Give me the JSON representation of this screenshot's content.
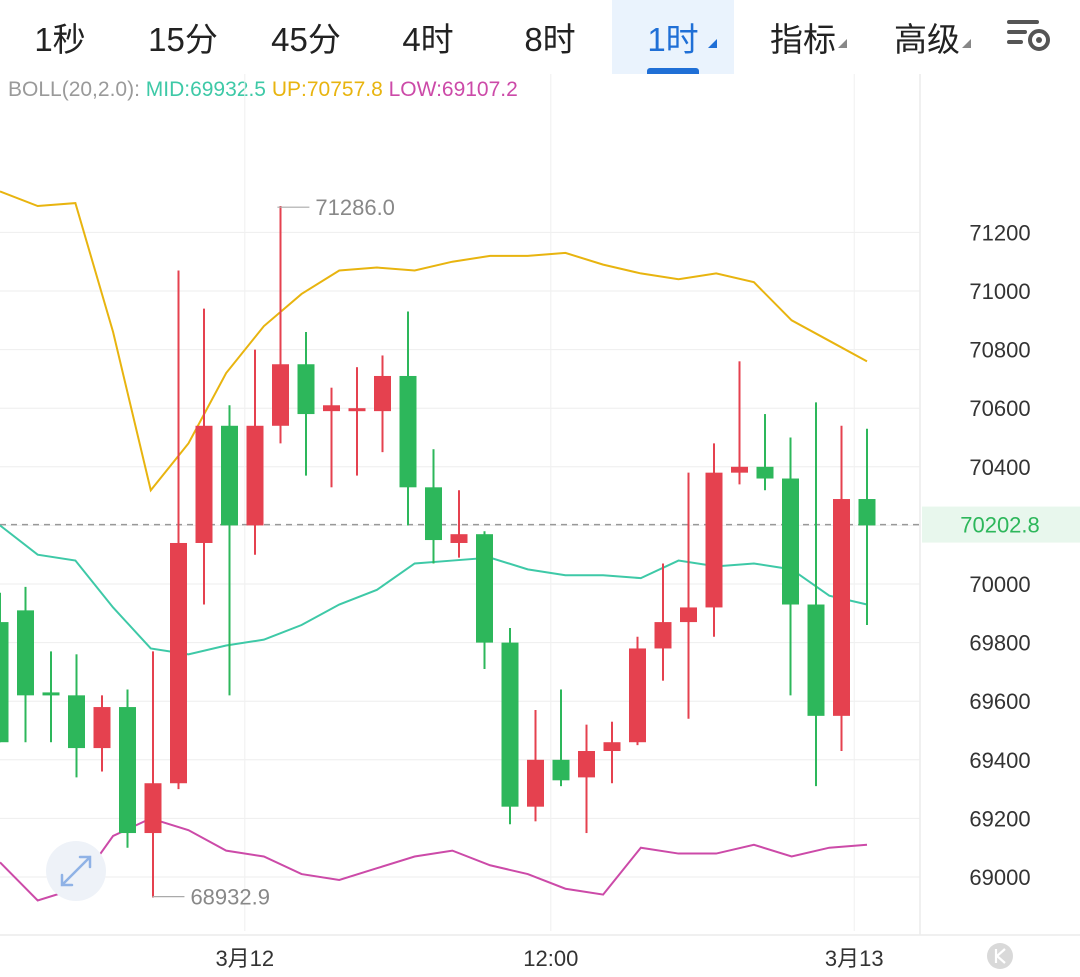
{
  "tabs": [
    {
      "label": "1秒",
      "active": false,
      "dropdown": false
    },
    {
      "label": "15分",
      "active": false,
      "dropdown": false
    },
    {
      "label": "45分",
      "active": false,
      "dropdown": false
    },
    {
      "label": "4时",
      "active": false,
      "dropdown": false
    },
    {
      "label": "8时",
      "active": false,
      "dropdown": false
    },
    {
      "label": "1时",
      "active": true,
      "dropdown": true
    },
    {
      "label": "指标",
      "active": false,
      "dropdown": true
    },
    {
      "label": "高级",
      "active": false,
      "dropdown": true
    }
  ],
  "legend": {
    "name": "BOLL(20,2.0):",
    "mid": "MID:69932.5",
    "up": "UP:70757.8",
    "low": "LOW:69107.2"
  },
  "colors": {
    "up": "#e5414f",
    "down": "#2db75b",
    "mid": "#3ec9a7",
    "upper": "#e8b40f",
    "lower": "#cc4aa8",
    "active_tab": "#1f6fd6",
    "legend_name": "#9a9a9a"
  },
  "chart_data": {
    "type": "candlestick",
    "ylim": [
      68820,
      71780
    ],
    "y_ticks": [
      69000,
      69200,
      69400,
      69600,
      69800,
      70000,
      70200,
      70400,
      70600,
      70800,
      71000,
      71200
    ],
    "y_tick_labels": [
      "69000",
      "69200",
      "69400",
      "69600",
      "69800",
      "70000",
      "70200",
      "70400",
      "70600",
      "70800",
      "71000",
      "71200"
    ],
    "x_labels": [
      {
        "index": 9.6,
        "label": "3月12"
      },
      {
        "index": 21.6,
        "label": "12:00"
      },
      {
        "index": 33.5,
        "label": "3月13"
      }
    ],
    "last_price": 70202.8,
    "last_price_label": "70202.8",
    "high_label": {
      "index": 10.8,
      "value": 71286.0,
      "label": "71286.0"
    },
    "low_label": {
      "index": 5.9,
      "value": 68932.9,
      "label": "68932.9"
    },
    "candles": [
      {
        "o": 69870,
        "h": 69970,
        "l": 69460,
        "c": 69460
      },
      {
        "o": 69910,
        "h": 69990,
        "l": 69460,
        "c": 69620
      },
      {
        "o": 69630,
        "h": 69770,
        "l": 69460,
        "c": 69620
      },
      {
        "o": 69620,
        "h": 69760,
        "l": 69340,
        "c": 69440
      },
      {
        "o": 69440,
        "h": 69620,
        "l": 69360,
        "c": 69580
      },
      {
        "o": 69580,
        "h": 69640,
        "l": 69100,
        "c": 69150
      },
      {
        "o": 69150,
        "h": 69770,
        "l": 68930,
        "c": 69320
      },
      {
        "o": 69320,
        "h": 71070,
        "l": 69300,
        "c": 70140
      },
      {
        "o": 70140,
        "h": 70940,
        "l": 69930,
        "c": 70540
      },
      {
        "o": 70540,
        "h": 70610,
        "l": 69620,
        "c": 70200
      },
      {
        "o": 70200,
        "h": 70800,
        "l": 70100,
        "c": 70540
      },
      {
        "o": 70540,
        "h": 71290,
        "l": 70480,
        "c": 70750
      },
      {
        "o": 70750,
        "h": 70860,
        "l": 70370,
        "c": 70580
      },
      {
        "o": 70590,
        "h": 70670,
        "l": 70330,
        "c": 70610
      },
      {
        "o": 70600,
        "h": 70740,
        "l": 70370,
        "c": 70600
      },
      {
        "o": 70590,
        "h": 70780,
        "l": 70450,
        "c": 70710
      },
      {
        "o": 70710,
        "h": 70930,
        "l": 70200,
        "c": 70330
      },
      {
        "o": 70330,
        "h": 70460,
        "l": 70070,
        "c": 70150
      },
      {
        "o": 70140,
        "h": 70320,
        "l": 70090,
        "c": 70170
      },
      {
        "o": 70170,
        "h": 70180,
        "l": 69710,
        "c": 69800
      },
      {
        "o": 69800,
        "h": 69850,
        "l": 69180,
        "c": 69240
      },
      {
        "o": 69240,
        "h": 69570,
        "l": 69190,
        "c": 69400
      },
      {
        "o": 69400,
        "h": 69640,
        "l": 69310,
        "c": 69330
      },
      {
        "o": 69340,
        "h": 69520,
        "l": 69150,
        "c": 69430
      },
      {
        "o": 69430,
        "h": 69530,
        "l": 69320,
        "c": 69460
      },
      {
        "o": 69460,
        "h": 69820,
        "l": 69450,
        "c": 69780
      },
      {
        "o": 69780,
        "h": 70070,
        "l": 69670,
        "c": 69870
      },
      {
        "o": 69870,
        "h": 70380,
        "l": 69540,
        "c": 69920
      },
      {
        "o": 69920,
        "h": 70480,
        "l": 69820,
        "c": 70380
      },
      {
        "o": 70380,
        "h": 70760,
        "l": 70340,
        "c": 70400
      },
      {
        "o": 70400,
        "h": 70580,
        "l": 70320,
        "c": 70360
      },
      {
        "o": 70360,
        "h": 70500,
        "l": 69620,
        "c": 69930
      },
      {
        "o": 69930,
        "h": 70620,
        "l": 69310,
        "c": 69550
      },
      {
        "o": 69550,
        "h": 70540,
        "l": 69430,
        "c": 70290
      },
      {
        "o": 70290,
        "h": 70530,
        "l": 69860,
        "c": 70200
      }
    ],
    "upper_band": [
      71340,
      71290,
      71300,
      70860,
      70320,
      70480,
      70720,
      70880,
      70990,
      71070,
      71080,
      71070,
      71100,
      71120,
      71120,
      71130,
      71090,
      71060,
      71040,
      71060,
      71030,
      70900,
      70830,
      70760
    ],
    "mid_band": [
      70200,
      70100,
      70080,
      69920,
      69780,
      69760,
      69790,
      69810,
      69860,
      69930,
      69980,
      70070,
      70080,
      70090,
      70050,
      70030,
      70030,
      70020,
      70080,
      70060,
      70070,
      70050,
      69960,
      69930
    ],
    "lower_band": [
      69050,
      68920,
      68960,
      69140,
      69200,
      69160,
      69090,
      69070,
      69010,
      68990,
      69030,
      69070,
      69090,
      69040,
      69010,
      68960,
      68940,
      69100,
      69080,
      69080,
      69110,
      69070,
      69100,
      69110
    ]
  }
}
